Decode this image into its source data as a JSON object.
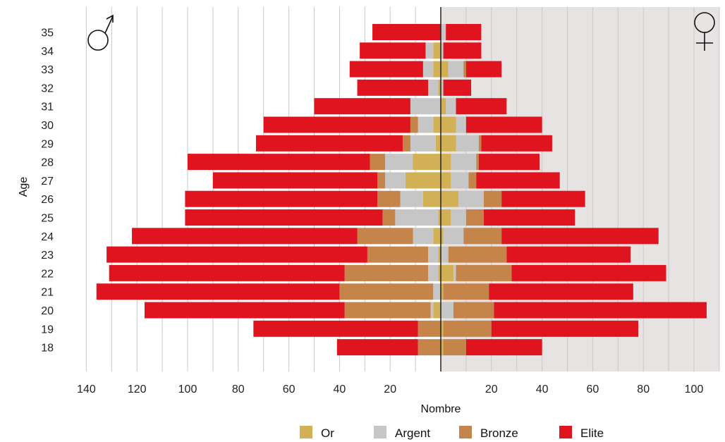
{
  "chart_data": {
    "type": "bar",
    "subtype": "population-pyramid",
    "xlabel": "Nombre",
    "ylabel": "Age",
    "left_group_symbol": "♂",
    "right_group_symbol": "♀",
    "xticks_left": [
      140,
      120,
      100,
      80,
      60,
      40,
      20
    ],
    "xticks_right": [
      20,
      40,
      60,
      80,
      100
    ],
    "xlim_left": 140,
    "xlim_right": 110,
    "grid": "vertical",
    "categories": [
      "35",
      "34",
      "33",
      "32",
      "31",
      "30",
      "29",
      "28",
      "27",
      "26",
      "25",
      "24",
      "23",
      "22",
      "21",
      "20",
      "19",
      "18"
    ],
    "series": [
      {
        "name": "Or",
        "color": "#d2b055",
        "left": [
          0,
          3,
          3,
          1,
          0,
          3,
          2,
          11,
          14,
          7,
          1,
          3,
          1,
          1,
          0,
          3,
          0,
          0
        ],
        "right": [
          0,
          0,
          3,
          0,
          2,
          6,
          6,
          4,
          4,
          7,
          4,
          1,
          0,
          5,
          1,
          0,
          1,
          1
        ]
      },
      {
        "name": "Argent",
        "color": "#c6c6c6",
        "left": [
          0,
          3,
          4,
          4,
          12,
          6,
          10,
          11,
          8,
          9,
          17,
          8,
          4,
          4,
          3,
          1,
          0,
          0
        ],
        "right": [
          2,
          1,
          6,
          1,
          4,
          4,
          9,
          10,
          7,
          10,
          6,
          8,
          3,
          1,
          0,
          5,
          0,
          0
        ]
      },
      {
        "name": "Bronze",
        "color": "#c4844a",
        "left": [
          0,
          0,
          0,
          0,
          0,
          3,
          3,
          6,
          3,
          9,
          5,
          22,
          24,
          33,
          37,
          34,
          9,
          9
        ],
        "right": [
          0,
          0,
          1,
          0,
          0,
          0,
          1,
          1,
          3,
          7,
          7,
          15,
          23,
          22,
          18,
          16,
          19,
          9
        ]
      },
      {
        "name": "Elite",
        "color": "#e0141e",
        "left": [
          27,
          26,
          29,
          28,
          38,
          58,
          58,
          72,
          65,
          76,
          78,
          89,
          103,
          93,
          96,
          79,
          65,
          32
        ],
        "right": [
          14,
          15,
          14,
          11,
          20,
          30,
          28,
          24,
          33,
          33,
          36,
          62,
          49,
          61,
          57,
          84,
          58,
          30
        ]
      }
    ],
    "legend": [
      "Or",
      "Argent",
      "Bronze",
      "Elite"
    ],
    "legend_position": "bottom"
  }
}
